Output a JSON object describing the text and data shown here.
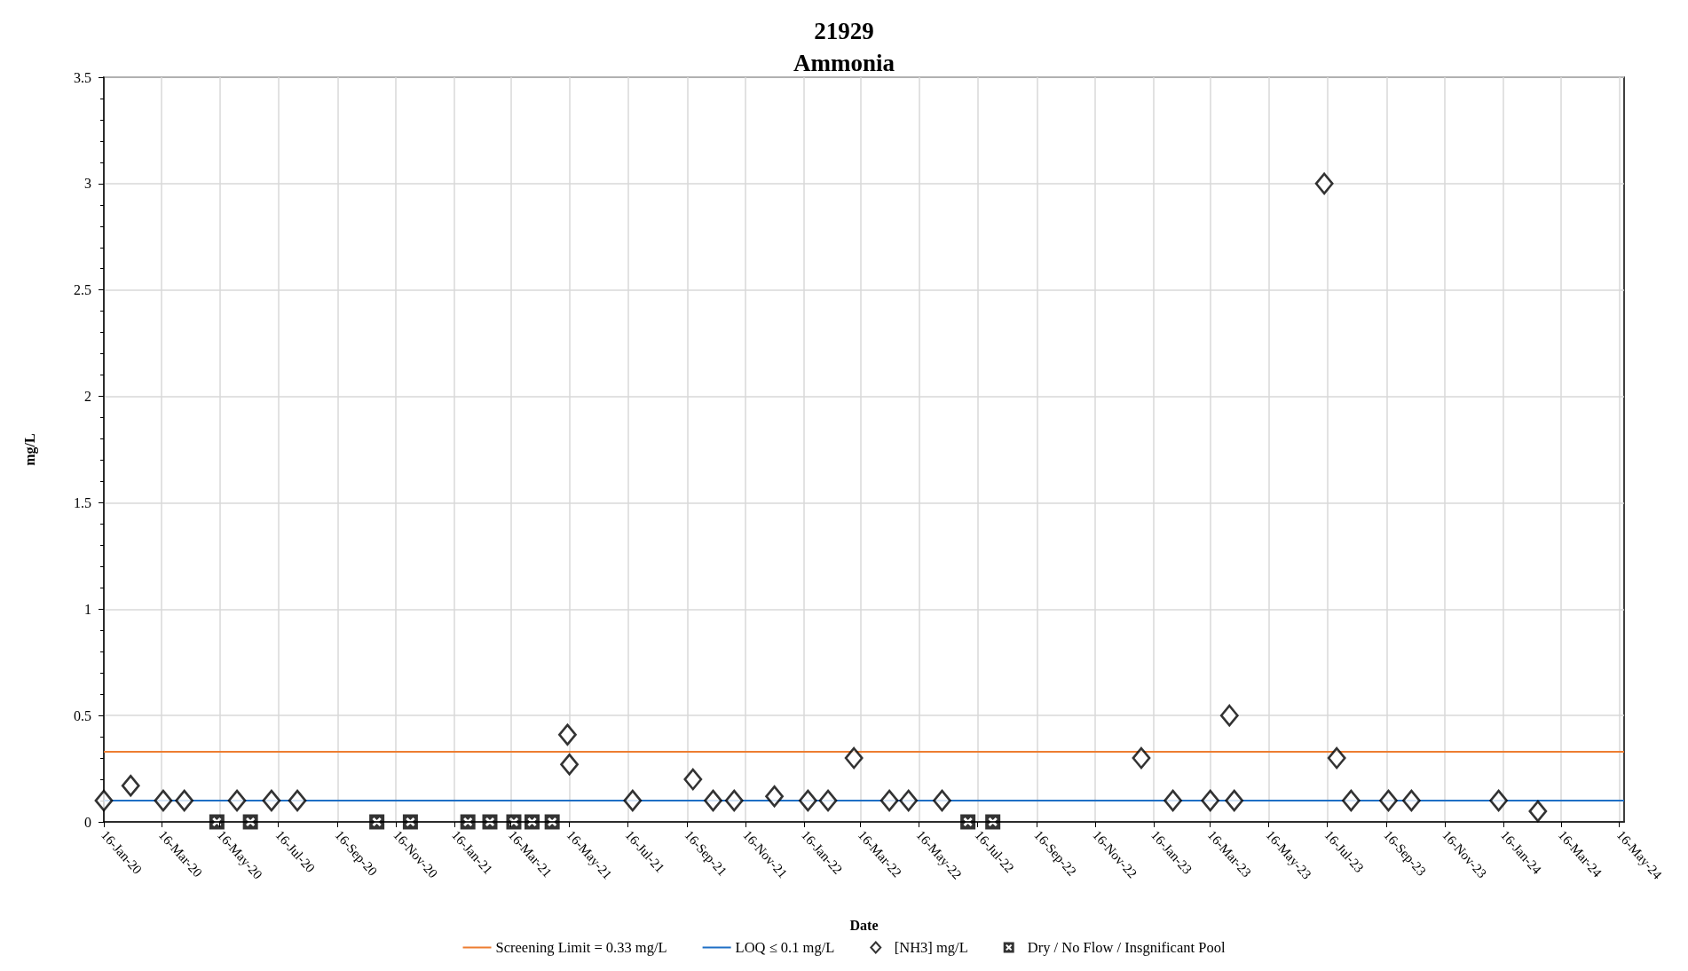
{
  "chart_data": {
    "type": "scatter",
    "title": "21929",
    "subtitle": "Ammonia",
    "xlabel": "Date",
    "ylabel": "mg/L",
    "xlim": [
      "2020-01-16",
      "2024-05-21"
    ],
    "xticks": [
      {
        "value": "2020-01-16",
        "label": "16-Jan-20"
      },
      {
        "value": "2020-03-16",
        "label": "16-Mar-20"
      },
      {
        "value": "2020-05-16",
        "label": "16-May-20"
      },
      {
        "value": "2020-07-16",
        "label": "16-Jul-20"
      },
      {
        "value": "2020-09-16",
        "label": "16-Sep-20"
      },
      {
        "value": "2020-11-16",
        "label": "16-Nov-20"
      },
      {
        "value": "2021-01-16",
        "label": "16-Jan-21"
      },
      {
        "value": "2021-03-16",
        "label": "16-Mar-21"
      },
      {
        "value": "2021-05-16",
        "label": "16-May-21"
      },
      {
        "value": "2021-07-16",
        "label": "16-Jul-21"
      },
      {
        "value": "2021-09-16",
        "label": "16-Sep-21"
      },
      {
        "value": "2021-11-16",
        "label": "16-Nov-21"
      },
      {
        "value": "2022-01-16",
        "label": "16-Jan-22"
      },
      {
        "value": "2022-03-16",
        "label": "16-Mar-22"
      },
      {
        "value": "2022-05-16",
        "label": "16-May-22"
      },
      {
        "value": "2022-07-16",
        "label": "16-Jul-22"
      },
      {
        "value": "2022-09-16",
        "label": "16-Sep-22"
      },
      {
        "value": "2022-11-16",
        "label": "16-Nov-22"
      },
      {
        "value": "2023-01-16",
        "label": "16-Jan-23"
      },
      {
        "value": "2023-03-16",
        "label": "16-Mar-23"
      },
      {
        "value": "2023-05-16",
        "label": "16-May-23"
      },
      {
        "value": "2023-07-16",
        "label": "16-Jul-23"
      },
      {
        "value": "2023-09-16",
        "label": "16-Sep-23"
      },
      {
        "value": "2023-11-16",
        "label": "16-Nov-23"
      },
      {
        "value": "2024-01-16",
        "label": "16-Jan-24"
      },
      {
        "value": "2024-03-16",
        "label": "16-Mar-24"
      },
      {
        "value": "2024-05-16",
        "label": "16-May-24"
      }
    ],
    "ylim": [
      0,
      3.5
    ],
    "yticks": [
      0,
      0.5,
      1,
      1.5,
      2,
      2.5,
      3,
      3.5
    ],
    "grid": true,
    "legend": "bottom",
    "ref_lines": [
      {
        "axis": "y",
        "value": 0.33,
        "label": "Screening Limit = 0.33 mg/L",
        "color": "#ed7d31"
      },
      {
        "axis": "y",
        "value": 0.1,
        "label": "LOQ ≤ 0.1 mg/L",
        "color": "#1f6fc5"
      }
    ],
    "series": [
      {
        "name": "[NH3] mg/L",
        "color": "#000000",
        "marker": "diamond",
        "x": [
          "2020-01-16",
          "2020-02-13",
          "2020-03-18",
          "2020-04-09",
          "2020-06-03",
          "2020-07-09",
          "2020-08-05",
          "2021-05-14",
          "2021-05-16",
          "2021-07-21",
          "2021-09-22",
          "2021-10-13",
          "2021-11-04",
          "2021-12-16",
          "2022-01-20",
          "2022-02-10",
          "2022-03-09",
          "2022-04-15",
          "2022-05-05",
          "2022-06-09",
          "2023-01-03",
          "2023-02-05",
          "2023-03-16",
          "2023-04-05",
          "2023-04-10",
          "2023-07-13",
          "2023-07-26",
          "2023-08-10",
          "2023-09-18",
          "2023-10-12",
          "2024-01-11",
          "2024-02-21"
        ],
        "values": [
          0.1,
          0.17,
          0.1,
          0.1,
          0.1,
          0.1,
          0.1,
          0.41,
          0.27,
          0.1,
          0.2,
          0.1,
          0.1,
          0.12,
          0.1,
          0.1,
          0.3,
          0.1,
          0.1,
          0.1,
          0.3,
          0.1,
          0.1,
          0.5,
          0.1,
          3,
          0.3,
          0.1,
          0.1,
          0.1,
          0.1,
          0.05
        ]
      },
      {
        "name": "Dry / No Flow / Insgnificant Pool",
        "color": "#000000",
        "marker": "square",
        "x": [
          "2020-05-13",
          "2020-06-17",
          "2020-10-27",
          "2020-12-01",
          "2021-01-30",
          "2021-02-22",
          "2021-03-19",
          "2021-04-07",
          "2021-04-28",
          "2022-07-06",
          "2022-08-01"
        ],
        "values": [
          0,
          0,
          0,
          0,
          0,
          0,
          0,
          0,
          0,
          0,
          0
        ]
      }
    ]
  }
}
